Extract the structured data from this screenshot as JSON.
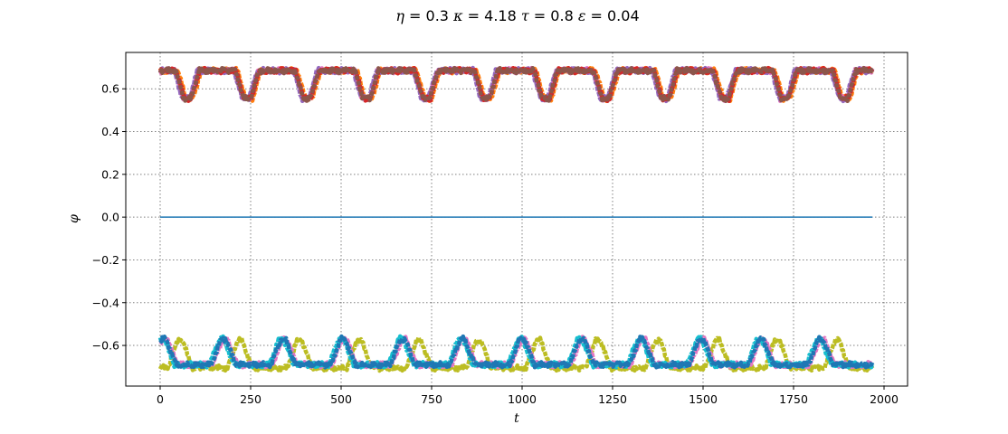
{
  "chart_data": {
    "type": "line",
    "title": {
      "eta_sym": "η",
      "eta_eq": " = 0.3 ",
      "kappa_sym": "κ",
      "kappa_eq": " = 4.18 ",
      "tau_sym": "τ",
      "tau_eq": " = 0.8 ",
      "eps_sym": "ε",
      "eps_eq": " = 0.04"
    },
    "xlabel": "t",
    "ylabel": "φ",
    "xlim": [
      -95,
      2065
    ],
    "ylim": [
      -0.79,
      0.77
    ],
    "xticks": [
      0,
      250,
      500,
      750,
      1000,
      1250,
      1500,
      1750,
      2000
    ],
    "xtick_labels": [
      "0",
      "250",
      "500",
      "750",
      "1000",
      "1250",
      "1500",
      "1750",
      "2000"
    ],
    "yticks": [
      -0.6,
      -0.4,
      -0.2,
      0.0,
      0.2,
      0.4,
      0.6
    ],
    "ytick_labels": [
      "−0.6",
      "−0.4",
      "−0.2",
      "0.0",
      "0.2",
      "0.4",
      "0.6"
    ],
    "grid": true,
    "colors": {
      "blue": "#1f77b4",
      "orange": "#ff7f0e",
      "pink": "#e377c2",
      "purple": "#9467bd",
      "red": "#d62728",
      "brown": "#8c564b",
      "olive": "#bcbd22",
      "cyan": "#17becf",
      "grid": "#808080"
    },
    "period": 165,
    "upper_band": {
      "high": 0.685,
      "low": 0.555,
      "dips_start": [
        43,
        208,
        373,
        538,
        703,
        868,
        1033,
        1198,
        1363,
        1528,
        1693,
        1858
      ],
      "ramp": 22,
      "bottom": 20
    },
    "lower_band": {
      "high": -0.57,
      "low": -0.69,
      "peaks_at": [
        10,
        175,
        340,
        505,
        670,
        835,
        1000,
        1165,
        1330,
        1495,
        1660,
        1825
      ],
      "ramp": 28,
      "top": 12
    },
    "series": [
      {
        "color": "blue",
        "values": [
          [
            0,
            0.0
          ],
          [
            1968,
            0.0
          ]
        ]
      },
      {
        "color": "orange",
        "band": "upper",
        "offset": 6
      },
      {
        "color": "pink",
        "band": "upper",
        "offset": -2
      },
      {
        "color": "purple",
        "band": "upper",
        "offset": -4
      },
      {
        "color": "red",
        "band": "upper",
        "offset": 2
      },
      {
        "color": "brown",
        "band": "upper",
        "offset": 0
      },
      {
        "color": "olive",
        "band": "lower",
        "offset": 45,
        "low_override": -0.705,
        "high_override": -0.575
      },
      {
        "color": "pink",
        "band": "lower",
        "offset": 4
      },
      {
        "color": "cyan",
        "band": "lower",
        "offset": -5
      },
      {
        "color": "blue",
        "band": "lower",
        "offset": 0
      }
    ],
    "t_max": 1968
  }
}
